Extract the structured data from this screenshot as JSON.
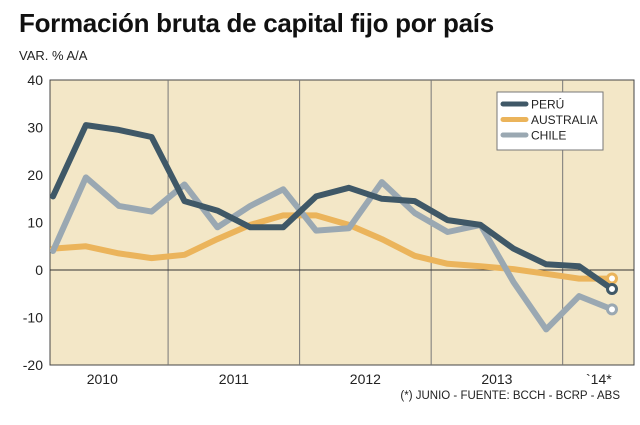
{
  "title": "Formación bruta de capital fijo por país",
  "subtitle": "VAR. % A/A",
  "note": "(*) JUNIO - FUENTE: BCCH - BCRP - ABS",
  "colors": {
    "background": "#f3e7c7",
    "peru": "#3f5867",
    "australia": "#ebb45b",
    "chile": "#9aa8b2"
  },
  "chart_data": {
    "type": "line",
    "ylim": [
      -20,
      40
    ],
    "yticks": [
      40,
      30,
      20,
      10,
      0,
      -10,
      -20
    ],
    "grid": "vertical year separators",
    "legend_position": "top-right",
    "x": [
      "2010-Q1",
      "2010-Q2",
      "2010-Q3",
      "2010-Q4",
      "2011-Q1",
      "2011-Q2",
      "2011-Q3",
      "2011-Q4",
      "2012-Q1",
      "2012-Q2",
      "2012-Q3",
      "2012-Q4",
      "2013-Q1",
      "2013-Q2",
      "2013-Q3",
      "2013-Q4",
      "2014-Q1",
      "2014-Q2"
    ],
    "categories": [
      "2010",
      "2011",
      "2012",
      "2013",
      "`14*"
    ],
    "series": [
      {
        "name": "PERÚ",
        "color": "#3f5867",
        "values": [
          15.5,
          30.5,
          29.5,
          28.0,
          14.5,
          12.5,
          9.0,
          9.0,
          15.5,
          17.3,
          15.0,
          14.5,
          10.5,
          9.5,
          4.5,
          1.2,
          0.8,
          -4.0
        ]
      },
      {
        "name": "AUSTRALIA",
        "color": "#ebb45b",
        "values": [
          4.5,
          5.0,
          3.5,
          2.5,
          3.2,
          6.5,
          9.5,
          11.5,
          11.5,
          9.5,
          6.5,
          3.0,
          1.3,
          0.8,
          0.2,
          -0.8,
          -1.8,
          -1.8
        ]
      },
      {
        "name": "CHILE",
        "color": "#9aa8b2",
        "values": [
          4.0,
          19.5,
          13.5,
          12.3,
          18.0,
          9.0,
          13.5,
          17.0,
          8.3,
          8.8,
          18.5,
          12.0,
          8.0,
          9.5,
          -2.5,
          -12.5,
          -5.5,
          -8.3
        ]
      }
    ]
  }
}
